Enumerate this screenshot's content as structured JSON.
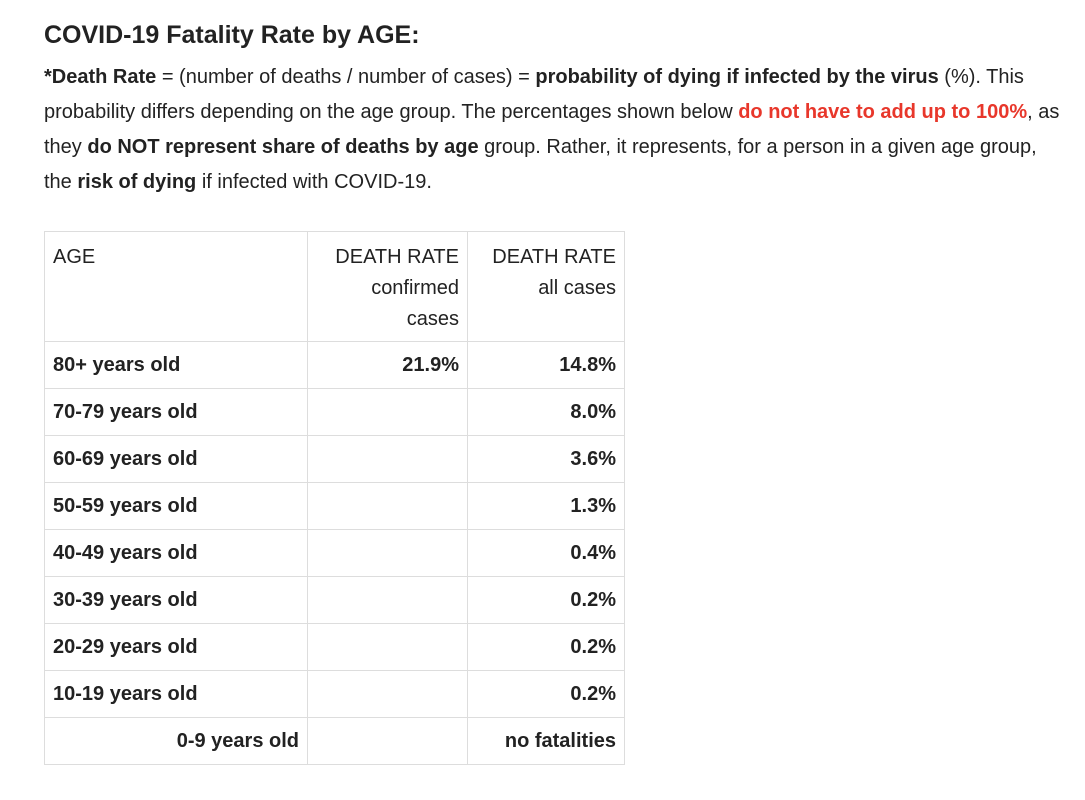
{
  "title": "COVID-19 Fatality Rate by AGE:",
  "intro": {
    "p1": "*Death Rate",
    "p2": " = (number of deaths / number of cases) = ",
    "p3": "probability of dying if infected by the virus",
    "p4": " (%). This probability differs depending on the age group. The percentages shown below ",
    "p5": "do not have to add up to 100%",
    "p6": ", as they ",
    "p7": "do NOT represent share of deaths by age",
    "p8": " group. Rather, it represents, for a person in a given age group, the ",
    "p9": "risk of dying",
    "p10": " if infected with COVID-19."
  },
  "table": {
    "headers": {
      "age": "AGE",
      "confirmed_line1": "DEATH RATE",
      "confirmed_line2": "confirmed",
      "confirmed_line3": "cases",
      "all_line1": "DEATH RATE",
      "all_line2": "all cases"
    },
    "rows": [
      {
        "age": "80+ years old",
        "confirmed": "21.9%",
        "all": "14.8%"
      },
      {
        "age": "70-79 years old",
        "confirmed": "",
        "all": "8.0%"
      },
      {
        "age": "60-69 years old",
        "confirmed": "",
        "all": "3.6%"
      },
      {
        "age": "50-59 years old",
        "confirmed": "",
        "all": "1.3%"
      },
      {
        "age": "40-49 years old",
        "confirmed": "",
        "all": "0.4%"
      },
      {
        "age": "30-39 years old",
        "confirmed": "",
        "all": "0.2%"
      },
      {
        "age": "20-29 years old",
        "confirmed": "",
        "all": "0.2%"
      },
      {
        "age": "10-19 years old",
        "confirmed": "",
        "all": "0.2%"
      },
      {
        "age": "0-9 years old",
        "confirmed": "",
        "all": "no fatalities"
      }
    ]
  },
  "colors": {
    "text": "#222222",
    "highlight": "#e8372b",
    "border": "#dddddd"
  }
}
